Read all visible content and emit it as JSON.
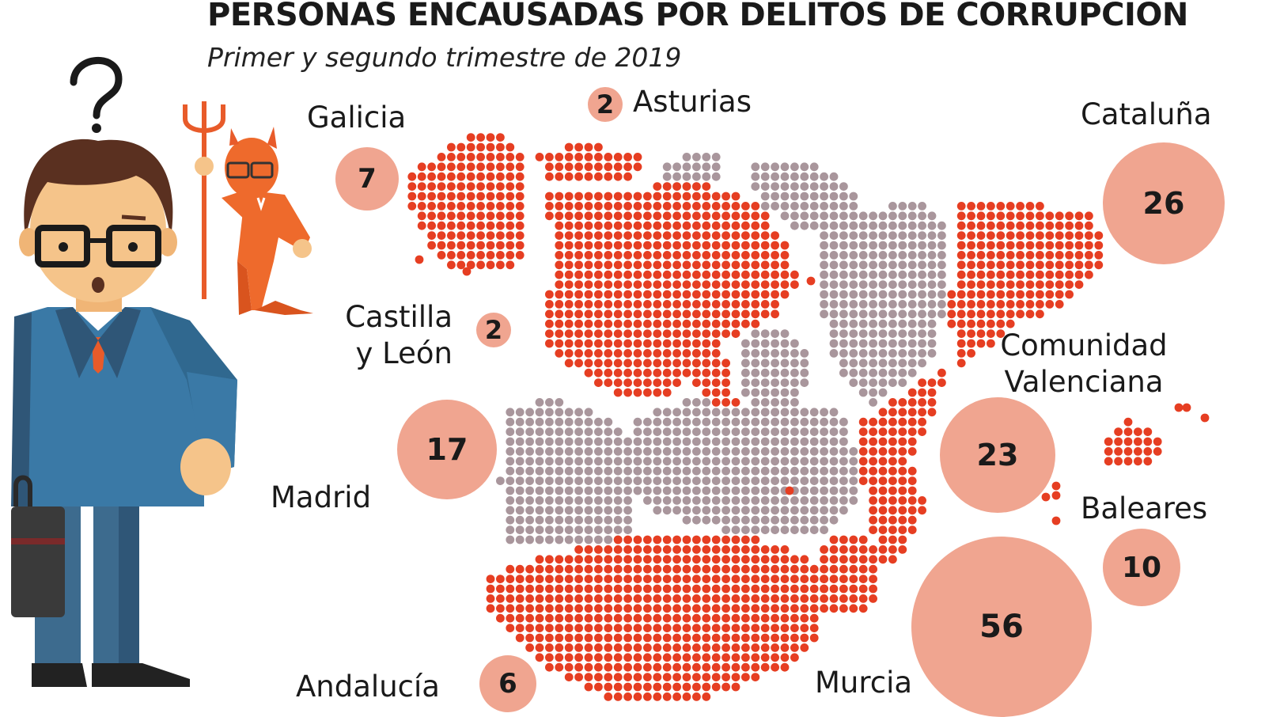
{
  "title": "PERSONAS ENCAUSADAS POR DELITOS DE CORRUPCIÓN",
  "subtitle": "Primer y segundo trimestre de 2019",
  "colors": {
    "highlighted_region": "#e63e22",
    "other_region": "#a9969c",
    "bubble": "#f0a590"
  },
  "icons": [
    "confused-businessman-illustration",
    "devil-businessman-illustration"
  ],
  "chart_data": {
    "type": "bubble-map",
    "unit": "personas encausadas",
    "regions": [
      {
        "name": "Galicia",
        "value": 7
      },
      {
        "name": "Asturias",
        "value": 2
      },
      {
        "name": "Cataluña",
        "value": 26
      },
      {
        "name": "Castilla y León",
        "value": 2
      },
      {
        "name": "Comunidad Valenciana",
        "value": 23
      },
      {
        "name": "Madrid",
        "value": 17
      },
      {
        "name": "Baleares",
        "value": 10
      },
      {
        "name": "Andalucía",
        "value": 6
      },
      {
        "name": "Murcia",
        "value": 56
      }
    ]
  }
}
